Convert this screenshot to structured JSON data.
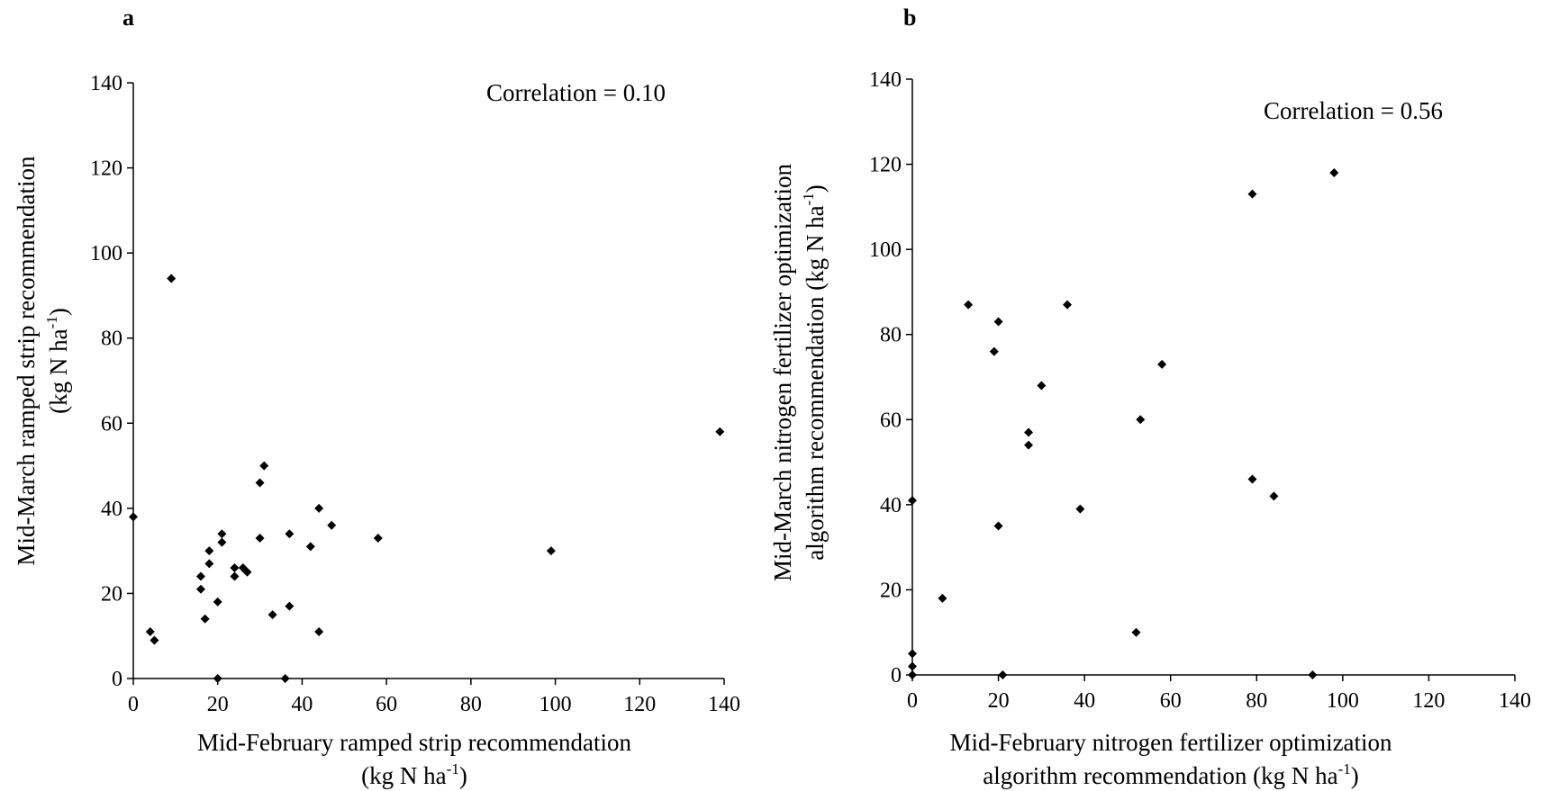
{
  "chart_data": [
    {
      "type": "scatter",
      "panel_label": "a",
      "annotation": "Correlation = 0.10",
      "xlabel": [
        "Mid-February ramped strip recommendation",
        "(kg N ha",
        "-1",
        ")"
      ],
      "ylabel": [
        "Mid-March ramped strip recommendation",
        "(kg N ha",
        "-1",
        ")"
      ],
      "xlim": [
        0,
        140
      ],
      "ylim": [
        0,
        140
      ],
      "xticks": [
        "0",
        "20",
        "40",
        "60",
        "80",
        "100",
        "120",
        "140"
      ],
      "yticks": [
        "0",
        "20",
        "40",
        "60",
        "80",
        "100",
        "120",
        "140"
      ],
      "marker": "diamond",
      "points": [
        {
          "x": 0,
          "y": 38
        },
        {
          "x": 4,
          "y": 11
        },
        {
          "x": 5,
          "y": 9
        },
        {
          "x": 9,
          "y": 94
        },
        {
          "x": 16,
          "y": 24
        },
        {
          "x": 16,
          "y": 21
        },
        {
          "x": 17,
          "y": 14
        },
        {
          "x": 18,
          "y": 27
        },
        {
          "x": 18,
          "y": 30
        },
        {
          "x": 20,
          "y": 18
        },
        {
          "x": 20,
          "y": 0
        },
        {
          "x": 21,
          "y": 34
        },
        {
          "x": 21,
          "y": 32
        },
        {
          "x": 24,
          "y": 26
        },
        {
          "x": 24,
          "y": 24
        },
        {
          "x": 26,
          "y": 26
        },
        {
          "x": 27,
          "y": 25
        },
        {
          "x": 30,
          "y": 46
        },
        {
          "x": 30,
          "y": 33
        },
        {
          "x": 31,
          "y": 50
        },
        {
          "x": 33,
          "y": 15
        },
        {
          "x": 36,
          "y": 0
        },
        {
          "x": 37,
          "y": 34
        },
        {
          "x": 37,
          "y": 17
        },
        {
          "x": 42,
          "y": 31
        },
        {
          "x": 44,
          "y": 40
        },
        {
          "x": 44,
          "y": 11
        },
        {
          "x": 47,
          "y": 36
        },
        {
          "x": 58,
          "y": 33
        },
        {
          "x": 99,
          "y": 30
        },
        {
          "x": 139,
          "y": 58
        }
      ]
    },
    {
      "type": "scatter",
      "panel_label": "b",
      "annotation": "Correlation = 0.56",
      "xlabel": [
        "Mid-February nitrogen fertilizer optimization",
        "algorithm recommendation (kg N ha",
        "-1",
        ")"
      ],
      "ylabel": [
        "Mid-March nitrogen fertilizer optimization",
        "algorithm recommendation (kg N ha",
        "-1",
        ")"
      ],
      "xlim": [
        0,
        140
      ],
      "ylim": [
        0,
        140
      ],
      "xticks": [
        "0",
        "20",
        "40",
        "60",
        "80",
        "100",
        "120",
        "140"
      ],
      "yticks": [
        "0",
        "20",
        "40",
        "60",
        "80",
        "100",
        "120",
        "140"
      ],
      "marker": "diamond",
      "points": [
        {
          "x": 0,
          "y": 41
        },
        {
          "x": 0,
          "y": 5
        },
        {
          "x": 0,
          "y": 2
        },
        {
          "x": 0,
          "y": 0
        },
        {
          "x": 7,
          "y": 18
        },
        {
          "x": 13,
          "y": 87
        },
        {
          "x": 19,
          "y": 76
        },
        {
          "x": 20,
          "y": 83
        },
        {
          "x": 20,
          "y": 35
        },
        {
          "x": 21,
          "y": 0
        },
        {
          "x": 27,
          "y": 57
        },
        {
          "x": 27,
          "y": 54
        },
        {
          "x": 30,
          "y": 68
        },
        {
          "x": 36,
          "y": 87
        },
        {
          "x": 39,
          "y": 39
        },
        {
          "x": 52,
          "y": 10
        },
        {
          "x": 53,
          "y": 60
        },
        {
          "x": 58,
          "y": 73
        },
        {
          "x": 79,
          "y": 113
        },
        {
          "x": 79,
          "y": 46
        },
        {
          "x": 84,
          "y": 42
        },
        {
          "x": 93,
          "y": 0
        },
        {
          "x": 98,
          "y": 118
        }
      ]
    }
  ]
}
